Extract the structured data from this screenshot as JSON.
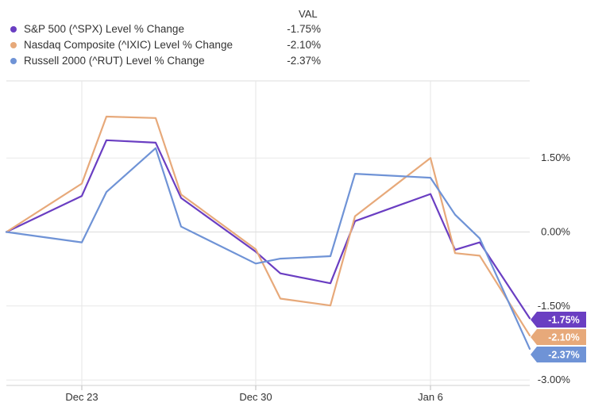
{
  "legend": {
    "value_header": "VAL",
    "items": [
      {
        "name": "S&P 500 (^SPX) Level % Change",
        "value": "-1.75%",
        "color": "#6a3ec2"
      },
      {
        "name": "Nasdaq Composite (^IXIC) Level % Change",
        "value": "-2.10%",
        "color": "#e7a97a"
      },
      {
        "name": "Russell 2000 (^RUT) Level % Change",
        "value": "-2.37%",
        "color": "#6f93d6"
      }
    ]
  },
  "chart_data": {
    "type": "line",
    "x_tick_labels": [
      "Dec 23",
      "Dec 30",
      "Jan 6"
    ],
    "y_tick_labels": [
      "1.50%",
      "0.00%",
      "-1.50%",
      "-3.00%"
    ],
    "y_ticks": [
      1.5,
      0,
      -1.5,
      -3.0
    ],
    "ylim": [
      -3.0,
      3.0
    ],
    "grid": true,
    "x": [
      "Dec 20",
      "Dec 23",
      "Dec 24",
      "Dec 26",
      "Dec 27",
      "Dec 30",
      "Dec 31",
      "Jan 2",
      "Jan 3",
      "Jan 6",
      "Jan 7",
      "Jan 8",
      "Jan 10"
    ],
    "series": [
      {
        "name": "S&P 500 (^SPX) Level % Change",
        "color": "#6a3ec2",
        "values": [
          0.0,
          0.73,
          1.86,
          1.81,
          0.69,
          -0.4,
          -0.84,
          -1.04,
          0.22,
          0.77,
          -0.36,
          -0.21,
          -1.75
        ],
        "end_label": "-1.75%"
      },
      {
        "name": "Nasdaq Composite (^IXIC) Level % Change",
        "color": "#e7a97a",
        "values": [
          0.0,
          0.98,
          2.34,
          2.31,
          0.76,
          -0.35,
          -1.35,
          -1.49,
          0.32,
          1.5,
          -0.43,
          -0.48,
          -2.1
        ],
        "end_label": "-2.10%"
      },
      {
        "name": "Russell 2000 (^RUT) Level % Change",
        "color": "#6f93d6",
        "values": [
          0.0,
          -0.21,
          0.81,
          1.7,
          0.11,
          -0.64,
          -0.54,
          -0.49,
          1.18,
          1.1,
          0.35,
          -0.13,
          -2.37
        ],
        "end_label": "-2.37%"
      }
    ]
  }
}
